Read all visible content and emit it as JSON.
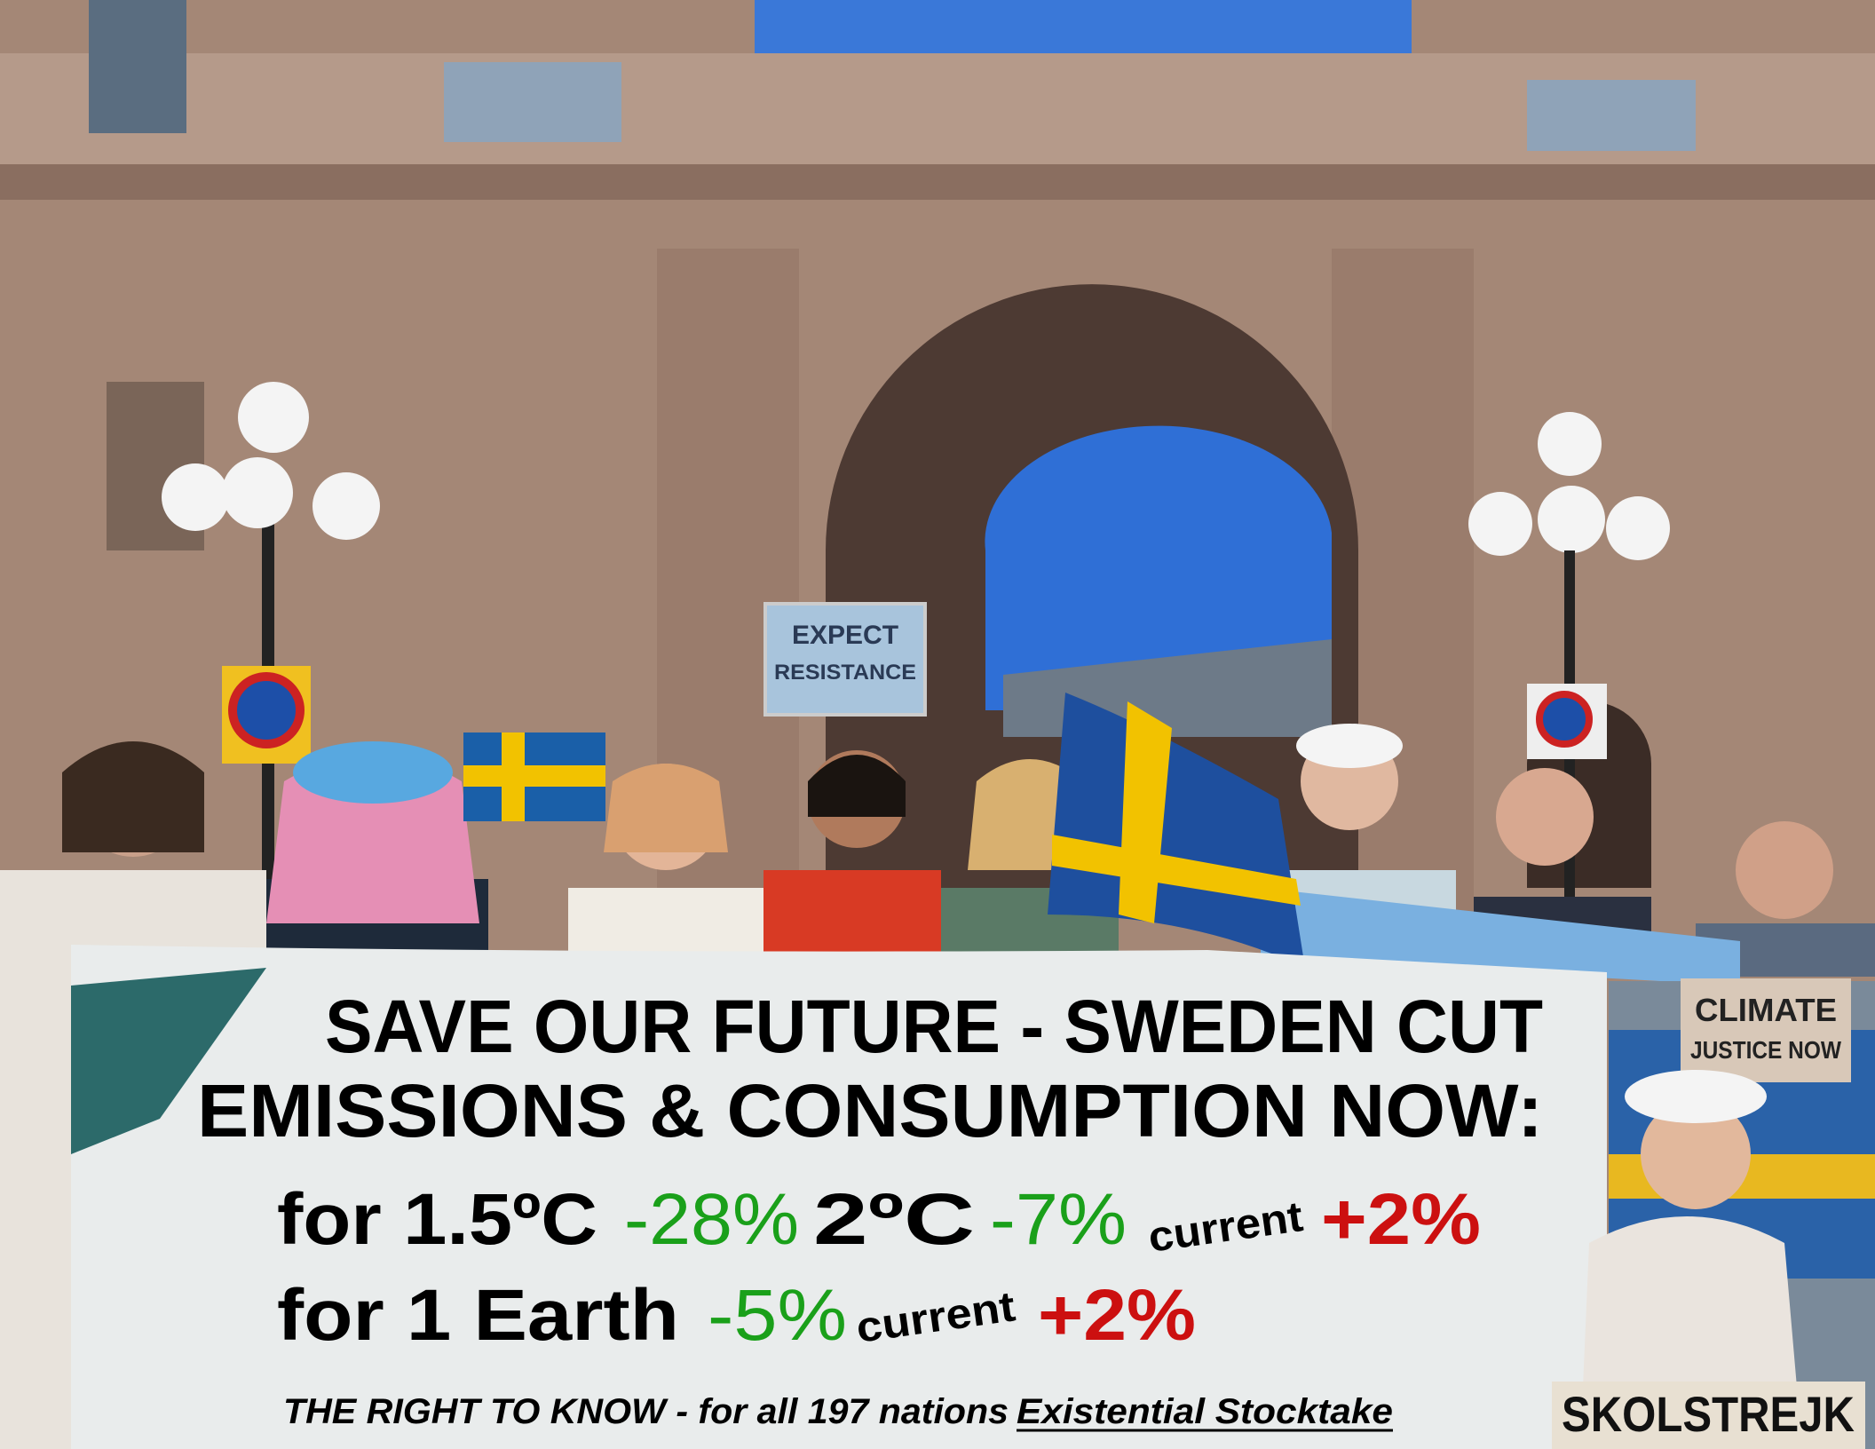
{
  "banner": {
    "headline": [
      "SAVE OUR FUTURE - SWEDEN CUT",
      "EMISSIONS & CONSUMPTION NOW:"
    ],
    "temperature_line": {
      "label_1": "for 1.5ºC",
      "value_1": "-28%",
      "label_2": "2ºC",
      "value_2": "-7%",
      "current_label": "current",
      "current_value": "+2%"
    },
    "earth_line": {
      "label": "for 1 Earth",
      "value": "-5%",
      "current_label": "current",
      "current_value": "+2%"
    },
    "footer": {
      "text": "THE RIGHT TO KNOW - for all 197 nations",
      "link": "Existential Stocktake"
    }
  },
  "signs": {
    "resistance": [
      "EXPECT",
      "RESISTANCE"
    ],
    "climate": [
      "CLIMATE",
      "JUSTICE NOW"
    ],
    "strike": "SKOLSTREJK"
  }
}
